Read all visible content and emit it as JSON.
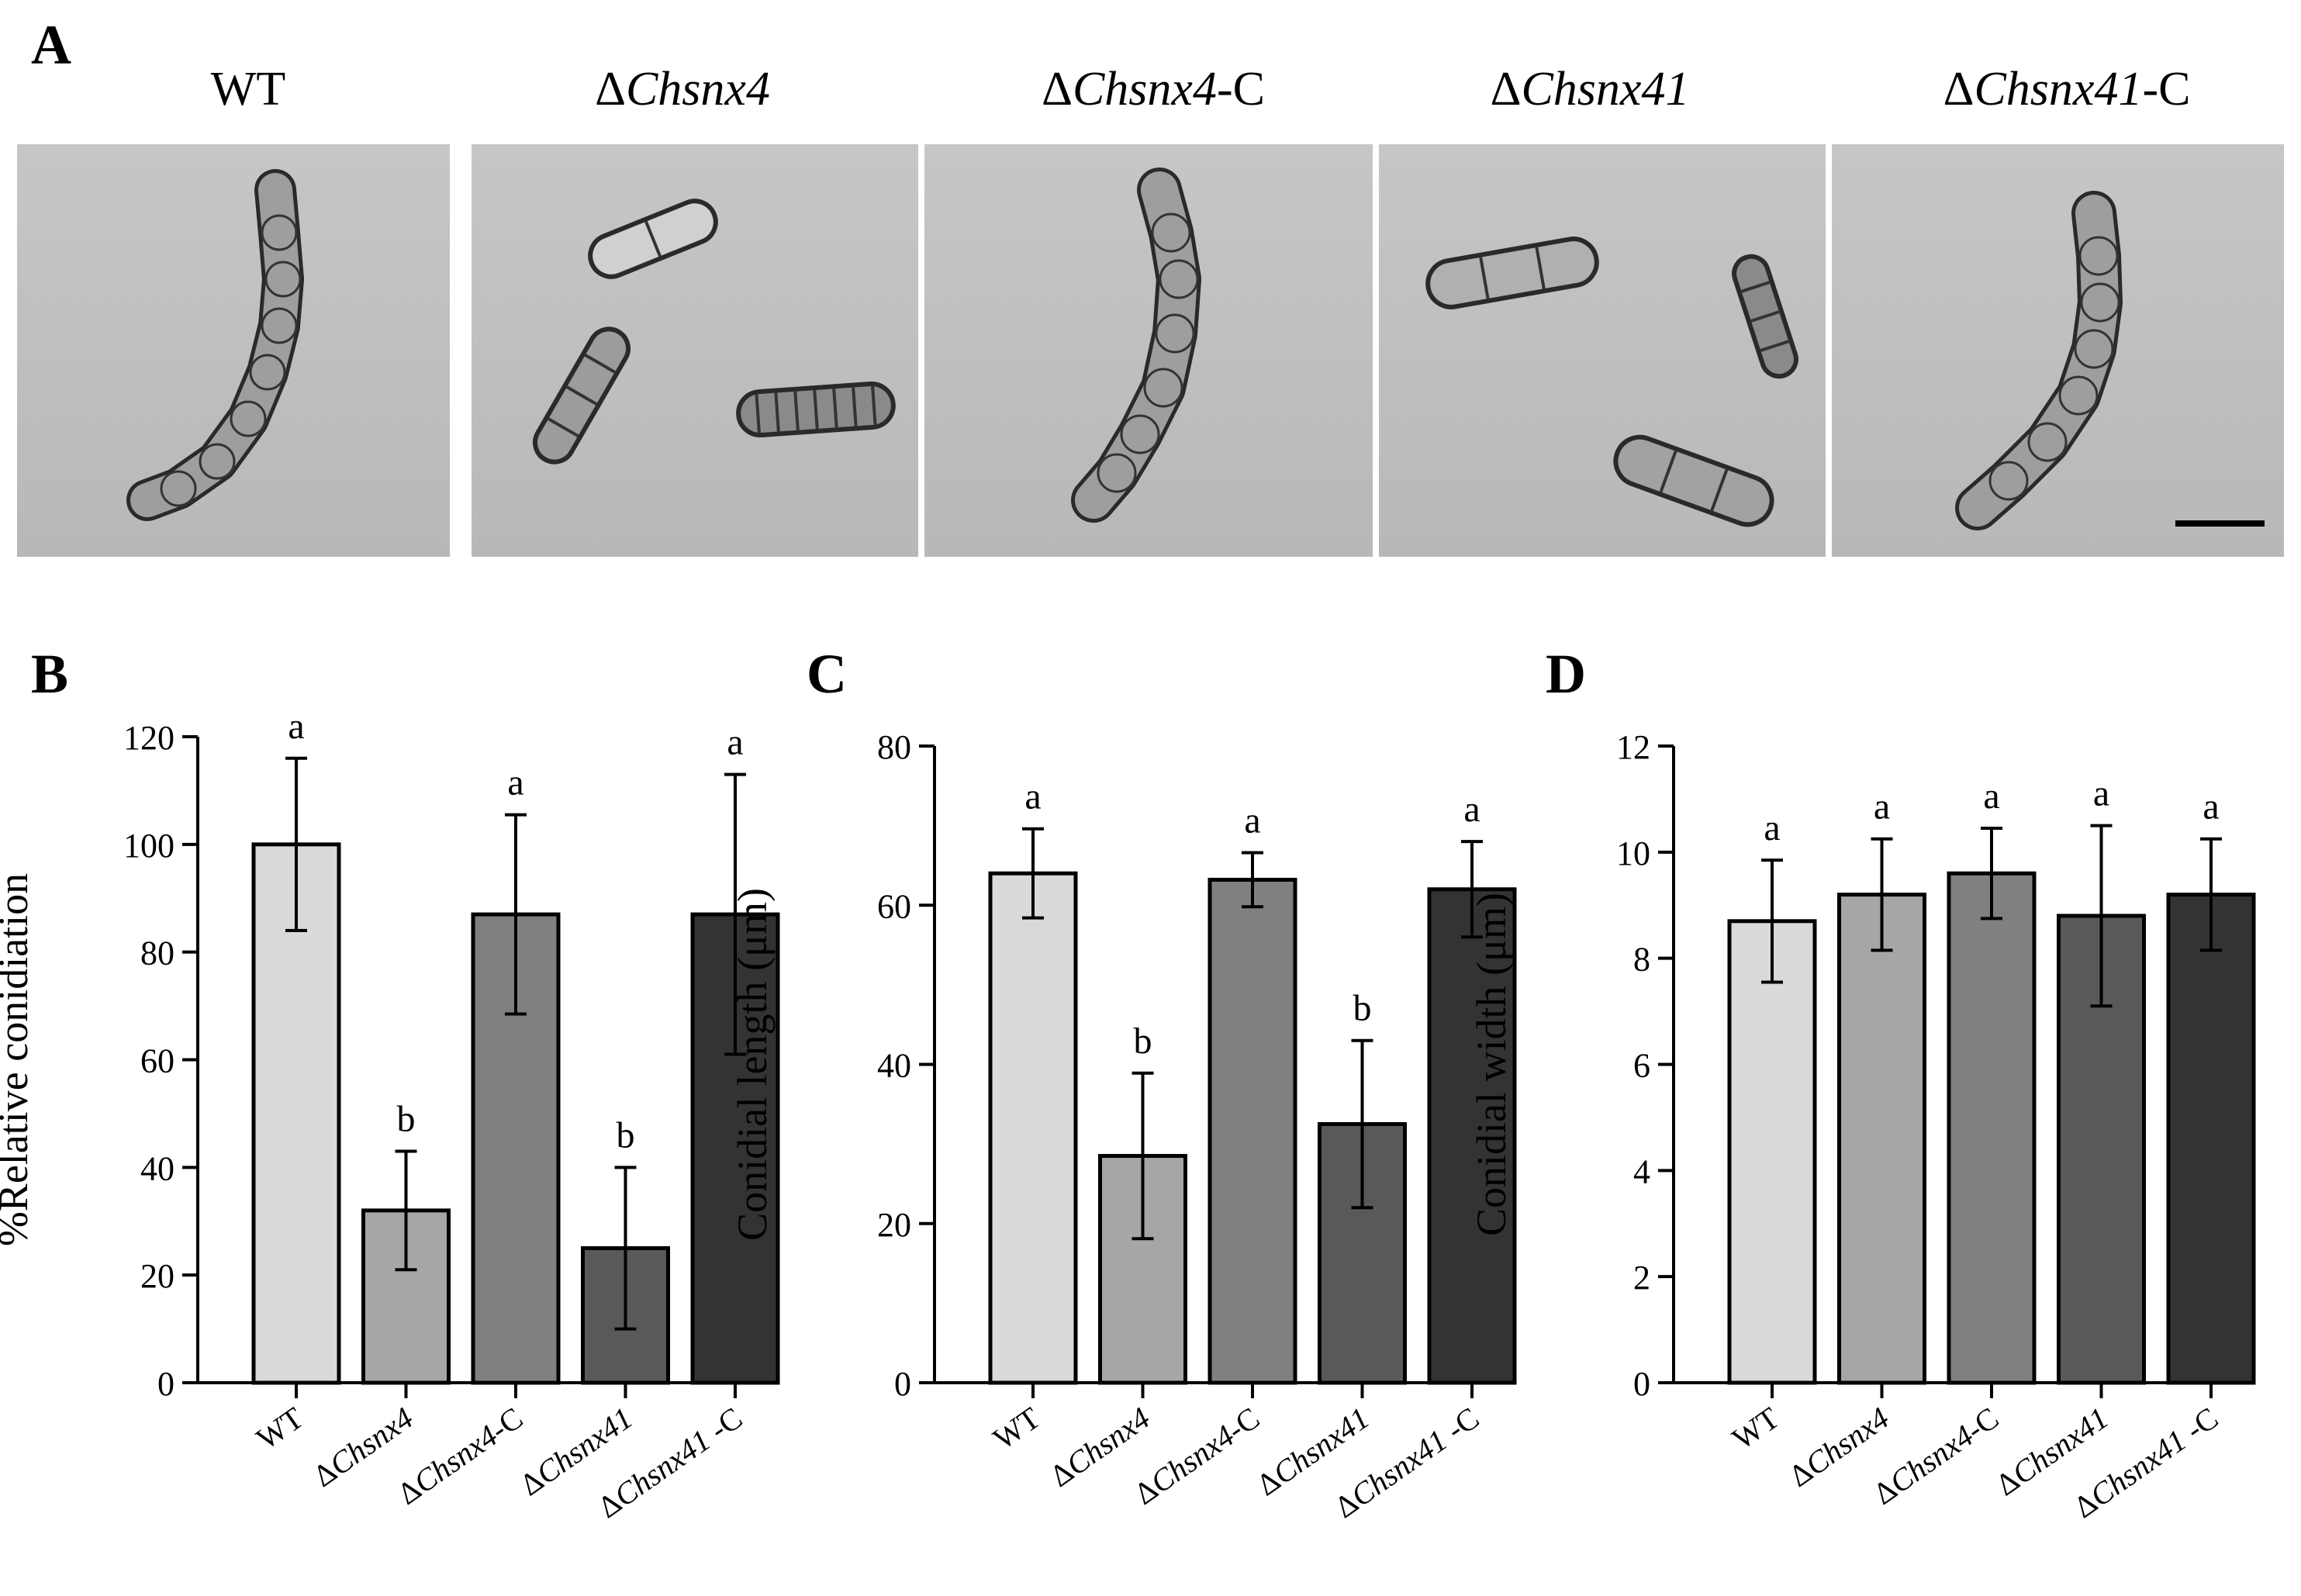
{
  "panel_a": {
    "label": "A",
    "titles": [
      {
        "prefix": "",
        "italic": "",
        "plain": "WT"
      },
      {
        "prefix": "Δ",
        "italic": "Chsnx4",
        "plain": ""
      },
      {
        "prefix": "Δ",
        "italic": "Chsnx4",
        "plain": "-C"
      },
      {
        "prefix": "Δ",
        "italic": "Chsnx41",
        "plain": ""
      },
      {
        "prefix": "Δ",
        "italic": "Chsnx41",
        "plain": "-C"
      }
    ]
  },
  "chart_data": [
    {
      "panel": "B",
      "type": "bar",
      "ylabel": "%Relative conidiation",
      "ylim": [
        0,
        120
      ],
      "yticks": [
        0,
        20,
        40,
        60,
        80,
        100,
        120
      ],
      "categories": [
        {
          "prefix": "",
          "italic": "",
          "plain": "WT"
        },
        {
          "prefix": "Δ",
          "italic": "Chsnx4",
          "plain": ""
        },
        {
          "prefix": "Δ",
          "italic": "Chsnx4",
          "plain": "-C"
        },
        {
          "prefix": "Δ",
          "italic": "Chsnx41",
          "plain": ""
        },
        {
          "prefix": "Δ",
          "italic": "Chsnx41",
          "plain": " -C"
        }
      ],
      "values": [
        100,
        32,
        87,
        25,
        87
      ],
      "errors": [
        16,
        11,
        18.5,
        15,
        26
      ],
      "letters": [
        "a",
        "b",
        "a",
        "b",
        "a"
      ],
      "colors": [
        "#d9d9d9",
        "#a6a6a6",
        "#808080",
        "#595959",
        "#333333"
      ]
    },
    {
      "panel": "C",
      "type": "bar",
      "ylabel": "Conidial length (μm)",
      "ylim": [
        0,
        80
      ],
      "yticks": [
        0,
        20,
        40,
        60,
        80
      ],
      "categories": [
        {
          "prefix": "",
          "italic": "",
          "plain": "WT"
        },
        {
          "prefix": "Δ",
          "italic": "Chsnx4",
          "plain": ""
        },
        {
          "prefix": "Δ",
          "italic": "Chsnx4",
          "plain": "-C"
        },
        {
          "prefix": "Δ",
          "italic": "Chsnx41",
          "plain": ""
        },
        {
          "prefix": "Δ",
          "italic": "Chsnx41",
          "plain": " -C"
        }
      ],
      "values": [
        64,
        28.5,
        63.2,
        32.5,
        62
      ],
      "errors": [
        5.6,
        10.4,
        3.4,
        10.5,
        6
      ],
      "letters": [
        "a",
        "b",
        "a",
        "b",
        "a"
      ],
      "colors": [
        "#d9d9d9",
        "#a6a6a6",
        "#808080",
        "#595959",
        "#333333"
      ]
    },
    {
      "panel": "D",
      "type": "bar",
      "ylabel": "Conidial width (μm)",
      "ylim": [
        0,
        12
      ],
      "yticks": [
        0,
        2,
        4,
        6,
        8,
        10,
        12
      ],
      "categories": [
        {
          "prefix": "",
          "italic": "",
          "plain": "WT"
        },
        {
          "prefix": "Δ",
          "italic": "Chsnx4",
          "plain": ""
        },
        {
          "prefix": "Δ",
          "italic": "Chsnx4",
          "plain": "-C"
        },
        {
          "prefix": "Δ",
          "italic": "Chsnx41",
          "plain": ""
        },
        {
          "prefix": "Δ",
          "italic": "Chsnx41",
          "plain": " -C"
        }
      ],
      "values": [
        8.7,
        9.2,
        9.6,
        8.8,
        9.2
      ],
      "errors": [
        1.15,
        1.05,
        0.85,
        1.7,
        1.05
      ],
      "letters": [
        "a",
        "a",
        "a",
        "a",
        "a"
      ],
      "colors": [
        "#d9d9d9",
        "#a6a6a6",
        "#808080",
        "#595959",
        "#333333"
      ]
    }
  ]
}
